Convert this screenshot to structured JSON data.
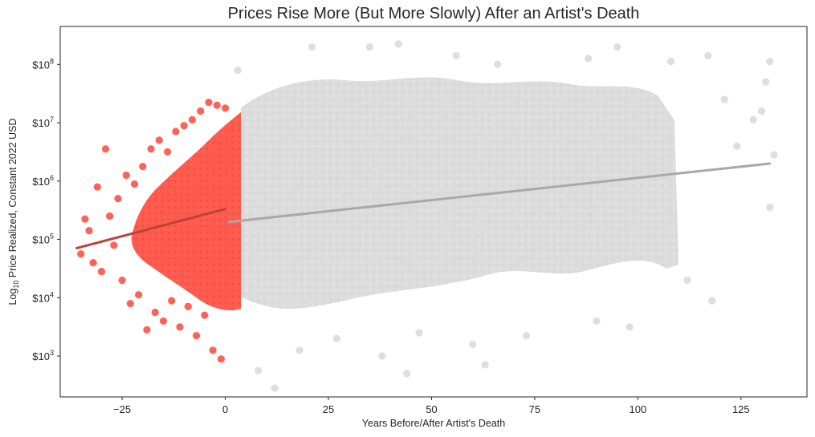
{
  "chart_data": {
    "type": "scatter",
    "title": "Prices Rise More (But More Slowly) After an Artist's Death",
    "xlabel": "Years Before/After Artist's Death",
    "ylabel_prefix": "Log",
    "ylabel_subscript": "10",
    "ylabel_rest": " Price Realized, Constant 2022 USD",
    "xlim": [
      -40,
      141
    ],
    "ylim_log10": [
      2.3,
      8.65
    ],
    "y_scale": "log10",
    "x_ticks": [
      -25,
      0,
      25,
      50,
      75,
      100,
      125
    ],
    "x_tick_labels": [
      "−25",
      "0",
      "25",
      "50",
      "75",
      "100",
      "125"
    ],
    "y_ticks_log10": [
      3,
      4,
      5,
      6,
      7,
      8
    ],
    "y_tick_base": "$10",
    "y_tick_exponents": [
      "3",
      "4",
      "5",
      "6",
      "7",
      "8"
    ],
    "grid": false,
    "series": [
      {
        "group": "before_death",
        "color": "#ff5a4e",
        "x_range": [
          -36,
          0
        ],
        "regression_line": {
          "x": [
            -36,
            0
          ],
          "log10_y": [
            4.85,
            5.52
          ],
          "color": "#b9443b"
        },
        "points": [
          {
            "x": -35,
            "log10_y": 4.75
          },
          {
            "x": -34,
            "log10_y": 5.35
          },
          {
            "x": -33,
            "log10_y": 5.15
          },
          {
            "x": -32,
            "log10_y": 4.6
          },
          {
            "x": -31,
            "log10_y": 5.9
          },
          {
            "x": -30,
            "log10_y": 4.45
          },
          {
            "x": -29,
            "log10_y": 6.55
          },
          {
            "x": -28,
            "log10_y": 5.4
          },
          {
            "x": -27,
            "log10_y": 4.9
          },
          {
            "x": -26,
            "log10_y": 5.7
          },
          {
            "x": -25,
            "log10_y": 4.3
          },
          {
            "x": -24,
            "log10_y": 6.1
          },
          {
            "x": -23,
            "log10_y": 3.9
          },
          {
            "x": -22,
            "log10_y": 5.95
          },
          {
            "x": -21,
            "log10_y": 4.05
          },
          {
            "x": -20,
            "log10_y": 6.25
          },
          {
            "x": -19,
            "log10_y": 3.45
          },
          {
            "x": -18,
            "log10_y": 6.55
          },
          {
            "x": -17,
            "log10_y": 3.75
          },
          {
            "x": -16,
            "log10_y": 6.7
          },
          {
            "x": -15,
            "log10_y": 3.6
          },
          {
            "x": -14,
            "log10_y": 6.5
          },
          {
            "x": -13,
            "log10_y": 3.95
          },
          {
            "x": -12,
            "log10_y": 6.85
          },
          {
            "x": -11,
            "log10_y": 3.5
          },
          {
            "x": -10,
            "log10_y": 6.95
          },
          {
            "x": -9,
            "log10_y": 3.85
          },
          {
            "x": -8,
            "log10_y": 7.05
          },
          {
            "x": -7,
            "log10_y": 3.35
          },
          {
            "x": -6,
            "log10_y": 7.2
          },
          {
            "x": -5,
            "log10_y": 3.7
          },
          {
            "x": -4,
            "log10_y": 7.35
          },
          {
            "x": -3,
            "log10_y": 3.1
          },
          {
            "x": -2,
            "log10_y": 7.3
          },
          {
            "x": -1,
            "log10_y": 2.95
          },
          {
            "x": 0,
            "log10_y": 7.25
          }
        ]
      },
      {
        "group": "after_death",
        "color": "#dcdcdc",
        "x_range": [
          0,
          132
        ],
        "regression_line": {
          "x": [
            1,
            132
          ],
          "log10_y": [
            5.3,
            6.3
          ],
          "color": "#a8a8a8"
        },
        "points": [
          {
            "x": 3,
            "log10_y": 7.9
          },
          {
            "x": 8,
            "log10_y": 2.75
          },
          {
            "x": 12,
            "log10_y": 2.45
          },
          {
            "x": 18,
            "log10_y": 3.1
          },
          {
            "x": 21,
            "log10_y": 8.3
          },
          {
            "x": 27,
            "log10_y": 3.3
          },
          {
            "x": 35,
            "log10_y": 8.3
          },
          {
            "x": 38,
            "log10_y": 3.0
          },
          {
            "x": 42,
            "log10_y": 8.35
          },
          {
            "x": 44,
            "log10_y": 2.7
          },
          {
            "x": 47,
            "log10_y": 3.4
          },
          {
            "x": 56,
            "log10_y": 8.15
          },
          {
            "x": 60,
            "log10_y": 3.2
          },
          {
            "x": 63,
            "log10_y": 2.85
          },
          {
            "x": 66,
            "log10_y": 8.0
          },
          {
            "x": 73,
            "log10_y": 3.35
          },
          {
            "x": 88,
            "log10_y": 8.1
          },
          {
            "x": 90,
            "log10_y": 3.6
          },
          {
            "x": 95,
            "log10_y": 8.3
          },
          {
            "x": 98,
            "log10_y": 3.5
          },
          {
            "x": 108,
            "log10_y": 8.05
          },
          {
            "x": 112,
            "log10_y": 4.3
          },
          {
            "x": 117,
            "log10_y": 8.15
          },
          {
            "x": 118,
            "log10_y": 3.95
          },
          {
            "x": 121,
            "log10_y": 7.4
          },
          {
            "x": 124,
            "log10_y": 6.6
          },
          {
            "x": 128,
            "log10_y": 7.05
          },
          {
            "x": 130,
            "log10_y": 7.2
          },
          {
            "x": 131,
            "log10_y": 7.7
          },
          {
            "x": 132,
            "log10_y": 8.05
          },
          {
            "x": 132,
            "log10_y": 5.55
          },
          {
            "x": 133,
            "log10_y": 6.45
          }
        ]
      }
    ]
  }
}
